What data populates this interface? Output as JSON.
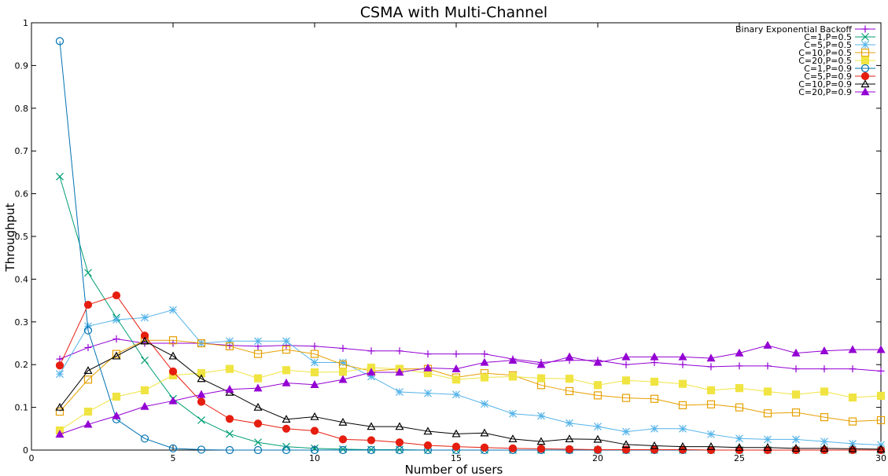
{
  "chart_data": {
    "type": "line",
    "title": "CSMA with Multi-Channel",
    "xlabel": "Number of users",
    "ylabel": "Throughput",
    "xlim": [
      0,
      30
    ],
    "ylim": [
      0,
      1
    ],
    "xticks": [
      0,
      5,
      10,
      15,
      20,
      25,
      30
    ],
    "yticks": [
      0,
      0.1,
      0.2,
      0.3,
      0.4,
      0.5,
      0.6,
      0.7,
      0.8,
      0.9,
      1
    ],
    "grid": false,
    "legend_position": "top-right",
    "x": [
      1,
      2,
      3,
      4,
      5,
      6,
      7,
      8,
      9,
      10,
      11,
      12,
      13,
      14,
      15,
      16,
      17,
      18,
      19,
      20,
      21,
      22,
      23,
      24,
      25,
      26,
      27,
      28,
      29,
      30
    ],
    "series": [
      {
        "name": "Binary Exponential Backoff",
        "color": "#9400d3",
        "marker": "plus",
        "values": [
          0.213,
          0.24,
          0.26,
          0.25,
          0.25,
          0.25,
          0.245,
          0.243,
          0.245,
          0.243,
          0.238,
          0.232,
          0.232,
          0.225,
          0.225,
          0.225,
          0.213,
          0.205,
          0.21,
          0.21,
          0.2,
          0.205,
          0.2,
          0.195,
          0.197,
          0.197,
          0.19,
          0.19,
          0.19,
          0.185
        ]
      },
      {
        "name": "C=1,P=0.5",
        "color": "#009e73",
        "marker": "x",
        "values": [
          0.64,
          0.415,
          0.31,
          0.21,
          0.12,
          0.07,
          0.038,
          0.018,
          0.008,
          0.004,
          0.002,
          0.001,
          0.001,
          0.0,
          0.0,
          0.0,
          0.0,
          0.0,
          0.0,
          0.0,
          0.0,
          0.0,
          0.0,
          0.0,
          0.0,
          0.0,
          0.0,
          0.0,
          0.0,
          0.0
        ]
      },
      {
        "name": "C=5,P=0.5",
        "color": "#56b4e9",
        "marker": "star",
        "values": [
          0.178,
          0.29,
          0.305,
          0.31,
          0.328,
          0.25,
          0.255,
          0.255,
          0.255,
          0.205,
          0.205,
          0.172,
          0.136,
          0.133,
          0.13,
          0.108,
          0.085,
          0.08,
          0.063,
          0.055,
          0.043,
          0.05,
          0.05,
          0.037,
          0.027,
          0.025,
          0.025,
          0.02,
          0.015,
          0.012
        ]
      },
      {
        "name": "C=10,P=0.5",
        "color": "#e69f00",
        "marker": "open-square",
        "values": [
          0.09,
          0.165,
          0.225,
          0.257,
          0.257,
          0.25,
          0.243,
          0.225,
          0.235,
          0.225,
          0.2,
          0.185,
          0.19,
          0.19,
          0.17,
          0.18,
          0.175,
          0.152,
          0.138,
          0.128,
          0.122,
          0.12,
          0.105,
          0.107,
          0.1,
          0.086,
          0.088,
          0.077,
          0.067,
          0.07
        ]
      },
      {
        "name": "C=20,P=0.5",
        "color": "#f0e442",
        "marker": "filled-square",
        "values": [
          0.046,
          0.09,
          0.125,
          0.14,
          0.175,
          0.18,
          0.19,
          0.168,
          0.187,
          0.182,
          0.183,
          0.193,
          0.19,
          0.18,
          0.165,
          0.17,
          0.172,
          0.168,
          0.167,
          0.152,
          0.163,
          0.16,
          0.155,
          0.14,
          0.145,
          0.137,
          0.13,
          0.137,
          0.123,
          0.127
        ]
      },
      {
        "name": "C=1,P=0.9",
        "color": "#0072b2",
        "marker": "open-circle",
        "values": [
          0.957,
          0.28,
          0.072,
          0.027,
          0.004,
          0.001,
          0.0,
          0.0,
          0.0,
          0.0,
          0.0,
          0.0,
          0.0,
          0.0,
          0.0,
          0.0,
          0.0,
          0.0,
          0.0,
          0.0,
          0.0,
          0.0,
          0.0,
          0.0,
          0.0,
          0.0,
          0.0,
          0.0,
          0.0,
          0.0
        ]
      },
      {
        "name": "C=5,P=0.9",
        "color": "#e51e10",
        "marker": "filled-circle",
        "values": [
          0.198,
          0.34,
          0.362,
          0.268,
          0.184,
          0.113,
          0.073,
          0.062,
          0.05,
          0.045,
          0.025,
          0.023,
          0.018,
          0.011,
          0.008,
          0.006,
          0.004,
          0.003,
          0.002,
          0.001,
          0.001,
          0.001,
          0.001,
          0.0,
          0.0,
          0.0,
          0.0,
          0.0,
          0.0,
          0.0
        ]
      },
      {
        "name": "C=10,P=0.9",
        "color": "#000000",
        "marker": "open-triangle",
        "values": [
          0.1,
          0.186,
          0.22,
          0.255,
          0.22,
          0.167,
          0.135,
          0.1,
          0.072,
          0.078,
          0.065,
          0.055,
          0.055,
          0.044,
          0.038,
          0.04,
          0.026,
          0.02,
          0.026,
          0.025,
          0.013,
          0.01,
          0.008,
          0.008,
          0.006,
          0.006,
          0.004,
          0.004,
          0.003,
          0.002
        ]
      },
      {
        "name": "C=20,P=0.9",
        "color": "#9400d3",
        "marker": "filled-triangle",
        "values": [
          0.037,
          0.06,
          0.08,
          0.102,
          0.115,
          0.13,
          0.142,
          0.145,
          0.157,
          0.153,
          0.165,
          0.182,
          0.182,
          0.192,
          0.19,
          0.205,
          0.21,
          0.2,
          0.218,
          0.205,
          0.218,
          0.218,
          0.218,
          0.215,
          0.227,
          0.245,
          0.227,
          0.232,
          0.235,
          0.235
        ]
      }
    ]
  }
}
